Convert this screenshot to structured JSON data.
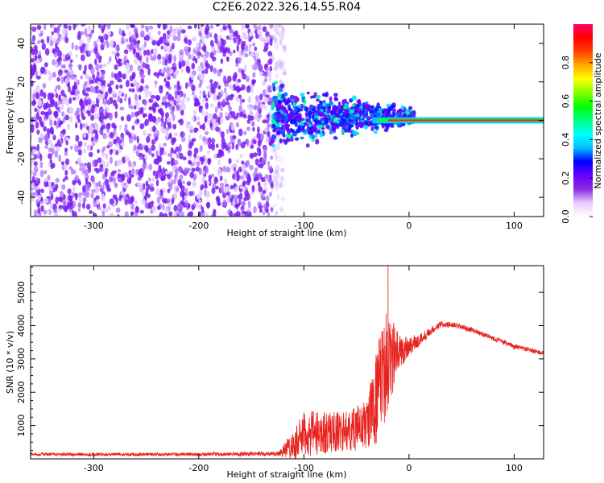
{
  "title": "C2E6.2022.326.14.55.R04",
  "chart_data": [
    {
      "type": "heatmap",
      "name": "spectrogram",
      "xlabel": "Height of straight line (km)",
      "ylabel": "Frequency (Hz)",
      "xlim": [
        -360,
        128
      ],
      "ylim": [
        -50,
        50
      ],
      "xticks": [
        -300,
        -200,
        -100,
        0,
        100
      ],
      "yticks": [
        -40,
        -20,
        0,
        20,
        40
      ],
      "features": {
        "noise_region_km": [
          -360,
          -130
        ],
        "signal_spread_region_km": [
          -130,
          -20
        ],
        "signal_spread_hz": [
          -15,
          15
        ],
        "carrier_center_hz": 0,
        "carrier_strong_from_km": -20
      },
      "colorbar": {
        "label": "Normalized spectral amplitude",
        "ticks": [
          0.0,
          0.2,
          0.4,
          0.6,
          0.8
        ],
        "range": [
          0.0,
          1.0
        ],
        "colors": [
          "#ffffff",
          "#e6ccff",
          "#8a2be2",
          "#6a00ff",
          "#0000ff",
          "#00bfff",
          "#00ffff",
          "#00ff80",
          "#00ff00",
          "#80ff00",
          "#ffff00",
          "#ffaa00",
          "#ff4000",
          "#ff0000",
          "#ff0066"
        ]
      }
    },
    {
      "type": "line",
      "name": "snr",
      "xlabel": "Height of straight line (km)",
      "ylabel": "SNR (10 * v/v)",
      "xlim": [
        -360,
        128
      ],
      "ylim": [
        0,
        5800
      ],
      "xticks": [
        -300,
        -200,
        -100,
        0,
        100
      ],
      "yticks": [
        1000,
        2000,
        3000,
        4000,
        5000
      ],
      "series": [
        {
          "color": "#e8231f",
          "envelope": {
            "x": [
              -360,
              -200,
              -125,
              -110,
              -100,
              -80,
              -60,
              -40,
              -30,
              -20,
              -10,
              0,
              10,
              20,
              30,
              40,
              60,
              80,
              100,
              128
            ],
            "base": [
              120,
              120,
              130,
              300,
              500,
              600,
              650,
              800,
              1500,
              2500,
              3000,
              3300,
              3500,
              3800,
              4000,
              4000,
              3850,
              3600,
              3350,
              3150
            ],
            "spread": [
              100,
              100,
              150,
              900,
              1400,
              1300,
              1200,
              1500,
              3000,
              3200,
              1200,
              600,
              400,
              250,
              200,
              180,
              150,
              150,
              150,
              150
            ]
          },
          "peak": {
            "x": -20,
            "y": 5800
          }
        }
      ]
    }
  ]
}
